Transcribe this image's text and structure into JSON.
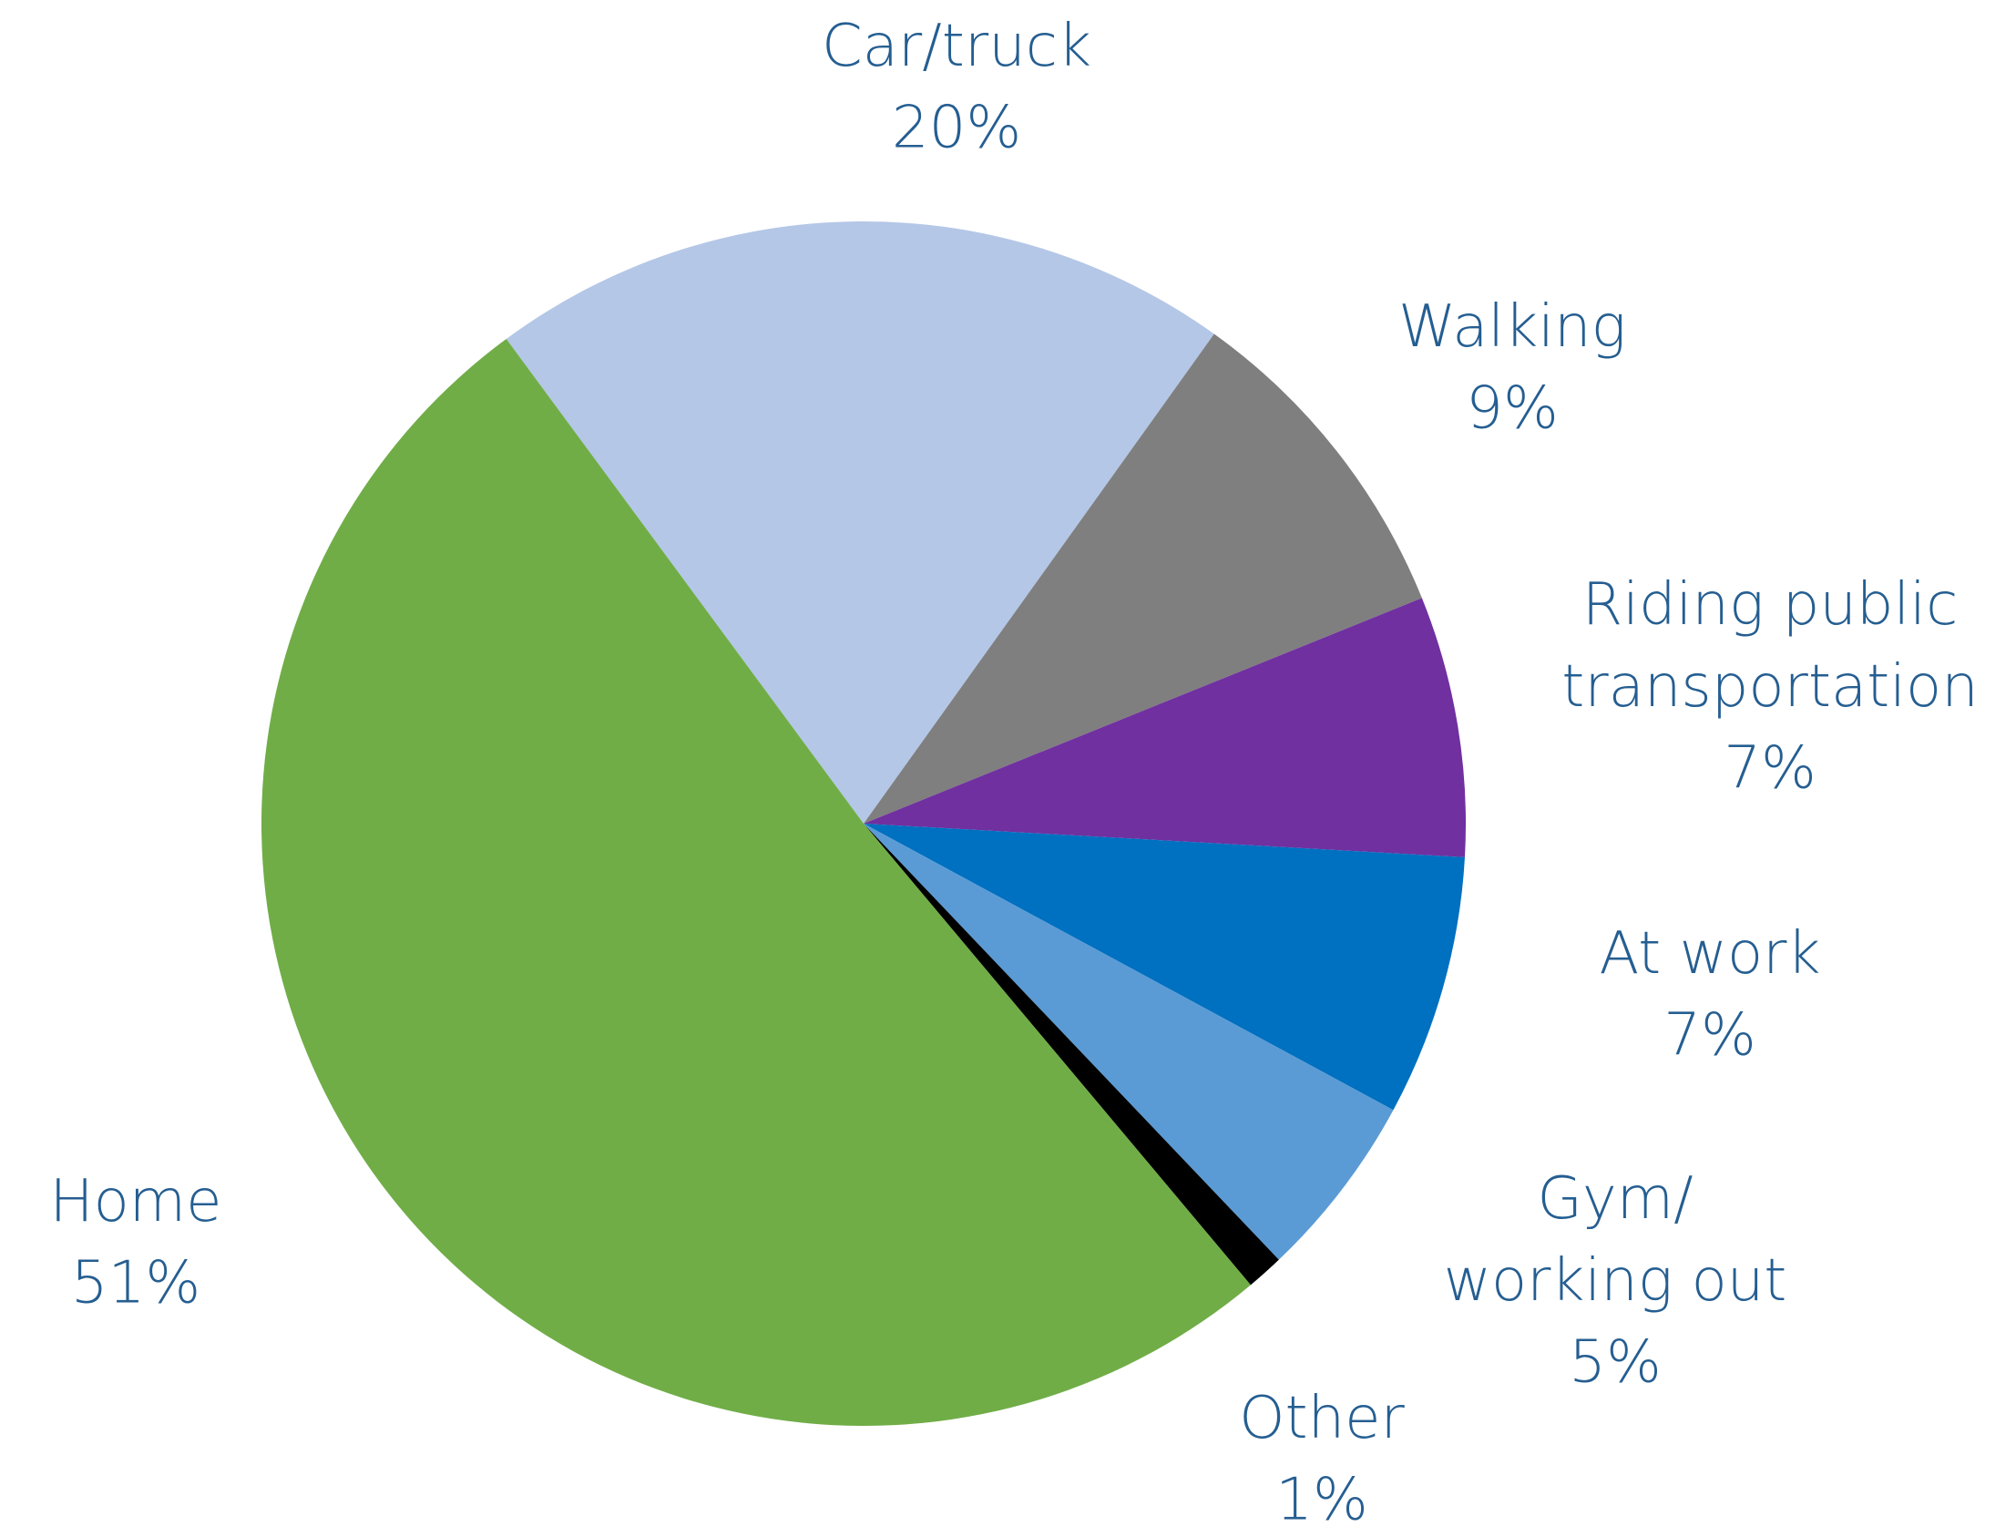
{
  "chart_data": {
    "type": "pie",
    "categories": [
      "Car/truck",
      "Walking",
      "Riding public\ntransportation",
      "At work",
      "Gym/\nworking out",
      "Other",
      "Home"
    ],
    "values": [
      20,
      9,
      7,
      7,
      5,
      1,
      51
    ],
    "value_labels": [
      "20%",
      "9%",
      "7%",
      "7%",
      "5%",
      "1%",
      "51%"
    ],
    "colors": [
      "#b4c7e7",
      "#7f7f7f",
      "#7030a0",
      "#0070c0",
      "#5b9bd5",
      "#000000",
      "#70ad47"
    ]
  }
}
